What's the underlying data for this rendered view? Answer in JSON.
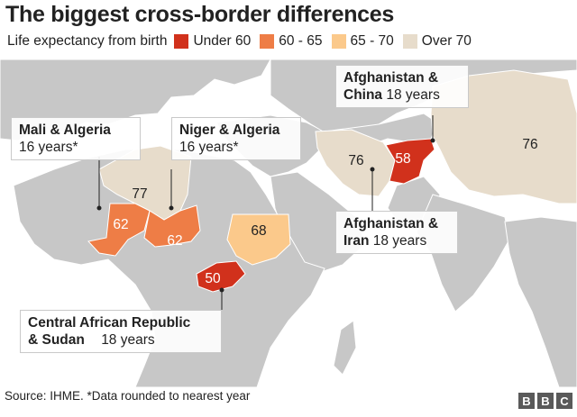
{
  "title": "The biggest cross-border differences",
  "legend": {
    "label": "Life expectancy from birth",
    "items": [
      {
        "label": "Under 60",
        "color": "#d1311c"
      },
      {
        "label": "60 - 65",
        "color": "#ee7d46"
      },
      {
        "label": "65 - 70",
        "color": "#fbc98b"
      },
      {
        "label": "Over 70",
        "color": "#e7dccb"
      }
    ]
  },
  "countries": {
    "algeria": "77",
    "mali": "62",
    "niger": "62",
    "sudan": "68",
    "car": "50",
    "iran": "76",
    "afghanistan": "58",
    "china": "76"
  },
  "callouts": {
    "mali_algeria": {
      "pair": "Mali & Algeria",
      "gap": "16 years*"
    },
    "niger_algeria": {
      "pair": "Niger & Algeria",
      "gap": "16 years*"
    },
    "afg_china": {
      "pair_a": "Afghanistan &",
      "pair_b": "China",
      "gap": "18 years"
    },
    "afg_iran": {
      "pair_a": "Afghanistan &",
      "pair_b": "Iran",
      "gap": "18 years"
    },
    "car_sudan": {
      "pair_a": "Central African Republic",
      "pair_b": "& Sudan",
      "gap": "18 years"
    }
  },
  "footer": {
    "source": "Source: IHME. *Data rounded to nearest year"
  },
  "brand": [
    "B",
    "B",
    "C"
  ]
}
